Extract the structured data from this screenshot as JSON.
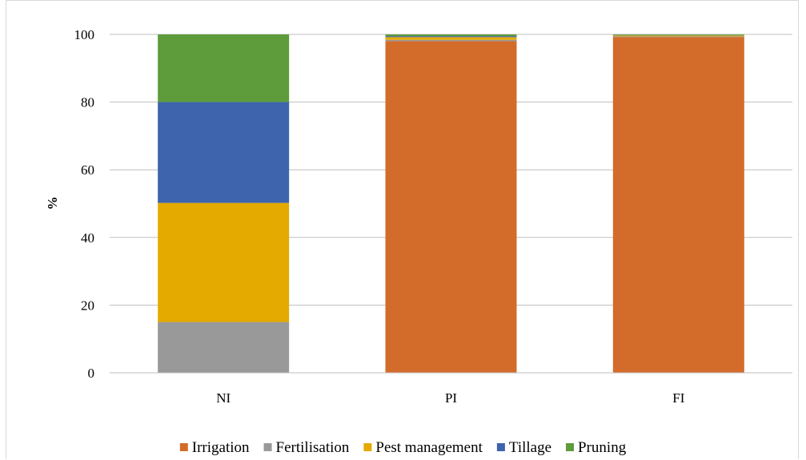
{
  "chart_data": {
    "type": "bar",
    "stacked": true,
    "categories": [
      "NI",
      "PI",
      "FI"
    ],
    "ylabel": "%",
    "ylim": [
      0,
      100
    ],
    "yticks": [
      0,
      20,
      40,
      60,
      80,
      100
    ],
    "grid": true,
    "legend_position": "bottom",
    "series": [
      {
        "name": "Irrigation",
        "color": "#d36c2a",
        "values": [
          0,
          98,
          99.2
        ]
      },
      {
        "name": "Fertilisation",
        "color": "#999999",
        "values": [
          15,
          0.4,
          0.2
        ]
      },
      {
        "name": "Pest management",
        "color": "#e4aa00",
        "values": [
          35.2,
          0.8,
          0.3
        ]
      },
      {
        "name": "Tillage",
        "color": "#3d64ad",
        "values": [
          29.8,
          0.3,
          0.1
        ]
      },
      {
        "name": "Pruning",
        "color": "#5e9b3b",
        "values": [
          20,
          0.5,
          0.2
        ]
      }
    ]
  }
}
